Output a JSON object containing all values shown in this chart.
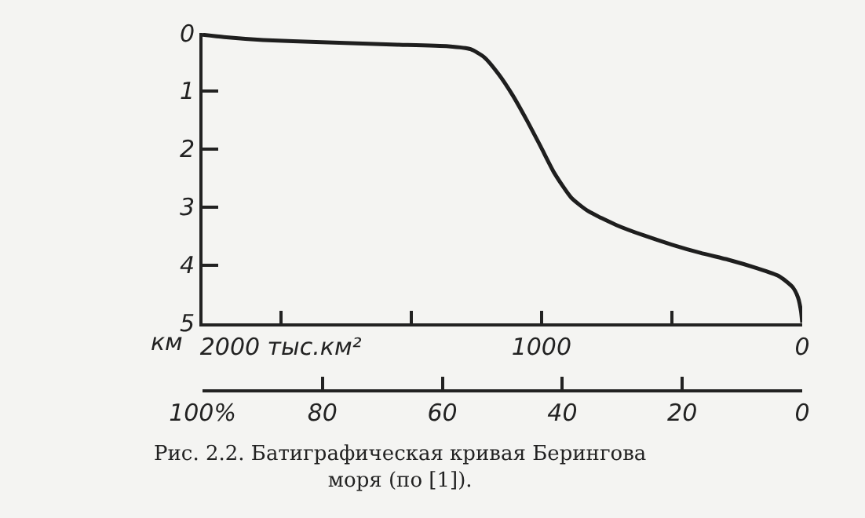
{
  "chart_data": {
    "type": "line",
    "color": "#1e1e1e",
    "line_style": "solid",
    "x": [
      100,
      96.4,
      89.9,
      80.1,
      68.4,
      59,
      55.3,
      53,
      50.7,
      48.3,
      46,
      43.6,
      41.3,
      38.5,
      35.7,
      31,
      26.4,
      21.7,
      17,
      12.3,
      7.7,
      3.9,
      1.6,
      0.7,
      0.2,
      0
    ],
    "values": [
      0.03,
      0.07,
      0.12,
      0.16,
      0.2,
      0.23,
      0.28,
      0.42,
      0.7,
      1.07,
      1.49,
      1.96,
      2.42,
      2.84,
      3.07,
      3.31,
      3.49,
      3.65,
      3.79,
      3.91,
      4.05,
      4.19,
      4.38,
      4.56,
      4.8,
      5.0
    ],
    "xlim": [
      100,
      0
    ],
    "xticks": [
      {
        "value": 100,
        "label": "100%"
      },
      80,
      60,
      40,
      20,
      0
    ],
    "x2lim": [
      2300,
      0
    ],
    "x2ticks": [
      {
        "value": 2000,
        "label": "2000 тыс.км²"
      },
      {
        "value": 1500,
        "label": null
      },
      1000,
      {
        "value": 500,
        "label": null
      },
      0
    ],
    "ylim": [
      5,
      0
    ],
    "yticks": [
      0,
      1,
      2,
      3,
      4,
      5
    ],
    "ylabel": "км",
    "annotations": [
      "Рис. 2.2. Батиграфическая кривая Берингова\nморя (по [1])."
    ]
  }
}
